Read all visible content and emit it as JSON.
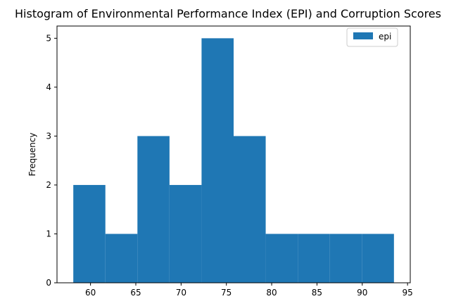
{
  "chart_data": {
    "type": "bar",
    "subtype": "histogram",
    "title": "Histogram of Environmental Performance Index (EPI) and Corruption Scores",
    "xlabel": "",
    "ylabel": "Frequency",
    "bin_edges": [
      58.1,
      61.64,
      65.18,
      68.72,
      72.26,
      75.8,
      79.34,
      82.88,
      86.42,
      89.96,
      93.5
    ],
    "series": [
      {
        "name": "epi",
        "color": "#1f77b4",
        "counts": [
          2,
          1,
          3,
          2,
          5,
          3,
          1,
          1,
          1,
          1
        ]
      }
    ],
    "xlim": [
      56.3,
      95.3
    ],
    "ylim": [
      0,
      5.25
    ],
    "x_ticks": [
      60,
      65,
      70,
      75,
      80,
      85,
      90,
      95
    ],
    "y_ticks": [
      0,
      1,
      2,
      3,
      4,
      5
    ],
    "grid": false,
    "legend_placement": "top-right"
  }
}
